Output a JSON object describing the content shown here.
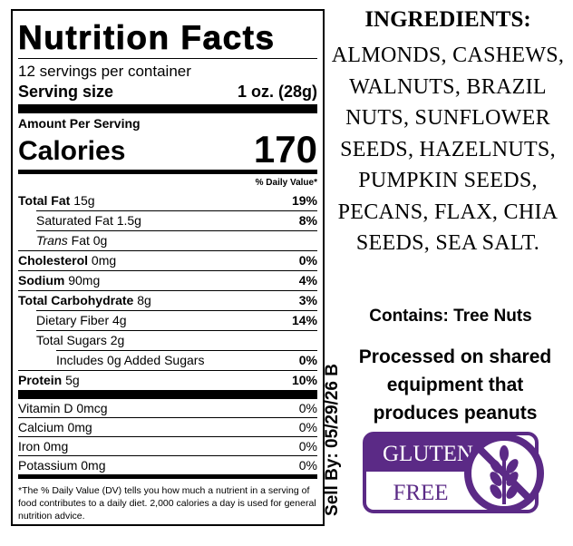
{
  "nutrition": {
    "title": "Nutrition Facts",
    "servings": "12 servings per container",
    "serving_size_label": "Serving size",
    "serving_size_value": "1 oz. (28g)",
    "amount_per_serving": "Amount Per Serving",
    "calories_label": "Calories",
    "calories_value": "170",
    "daily_value_header": "% Daily Value*",
    "rows": [
      {
        "name": "Total Fat",
        "amount": "15g",
        "dv": "19%"
      },
      {
        "name": "Saturated Fat 1.5g",
        "amount": "",
        "dv": "8%"
      },
      {
        "name": "Trans",
        "amount": "Fat 0g",
        "dv": ""
      },
      {
        "name": "Cholesterol",
        "amount": "0mg",
        "dv": "0%"
      },
      {
        "name": "Sodium",
        "amount": "90mg",
        "dv": "4%"
      },
      {
        "name": "Total Carbohydrate",
        "amount": "8g",
        "dv": "3%"
      },
      {
        "name": "Dietary Fiber 4g",
        "amount": "",
        "dv": "14%"
      },
      {
        "name": "Total Sugars 2g",
        "amount": "",
        "dv": ""
      },
      {
        "name": "Includes 0g Added Sugars",
        "amount": "",
        "dv": "0%"
      },
      {
        "name": "Protein",
        "amount": "5g",
        "dv": "10%"
      }
    ],
    "vitamins": [
      {
        "name": "Vitamin D 0mcg",
        "dv": "0%"
      },
      {
        "name": "Calcium 0mg",
        "dv": "0%"
      },
      {
        "name": "Iron 0mg",
        "dv": "0%"
      },
      {
        "name": "Potassium 0mg",
        "dv": "0%"
      }
    ],
    "footnote": "*The % Daily Value (DV) tells you how much a nutrient in a serving of food contributes to a daily diet. 2,000 calories a day is used for general nutrition advice."
  },
  "ingredients": {
    "heading": "INGREDIENTS:",
    "text": "ALMONDS, CASHEWS, WALNUTS, BRAZIL NUTS, SUNFLOWER SEEDS, HAZELNUTS, PUMPKIN SEEDS, PECANS, FLAX, CHIA SEEDS, SEA SALT."
  },
  "contains": "Contains: Tree Nuts",
  "processed": "Processed on shared equipment that produces peanuts",
  "sell_by": "Sell By: 05/29/26 B",
  "badge": {
    "line1": "GLUTEN",
    "line2": "FREE"
  }
}
